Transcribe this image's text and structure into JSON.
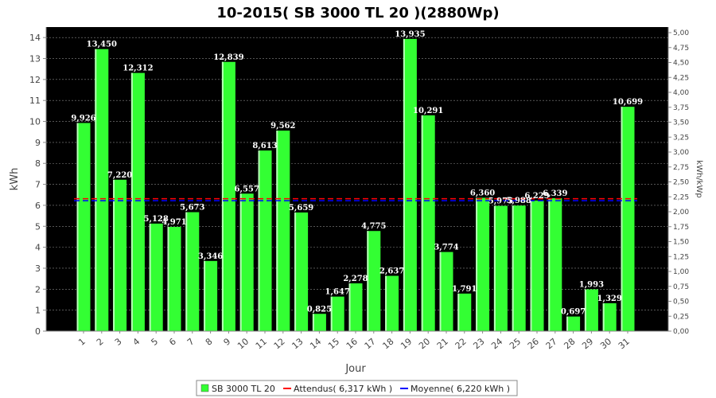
{
  "chart_data": {
    "type": "bar",
    "title": "10-2015( SB 3000 TL 20 )(2880Wp)",
    "xlabel": "Jour",
    "ylabel": "kWh",
    "y2label": "kWh/kWp",
    "ylim": [
      0,
      14.5
    ],
    "y2lim": [
      0,
      5.0
    ],
    "yticks": [
      "0",
      "1",
      "2",
      "3",
      "4",
      "5",
      "6",
      "7",
      "8",
      "9",
      "10",
      "11",
      "12",
      "13",
      "14"
    ],
    "y2ticks": [
      "0,00",
      "0,25",
      "0,50",
      "0,75",
      "1,00",
      "1,25",
      "1,50",
      "1,75",
      "2,00",
      "2,25",
      "2,50",
      "2,75",
      "3,00",
      "3,25",
      "3,50",
      "3,75",
      "4,00",
      "4,25",
      "4,50",
      "4,75",
      "5,00"
    ],
    "categories": [
      "1",
      "2",
      "3",
      "4",
      "5",
      "6",
      "7",
      "8",
      "9",
      "10",
      "11",
      "12",
      "13",
      "14",
      "15",
      "16",
      "17",
      "18",
      "19",
      "20",
      "21",
      "22",
      "23",
      "24",
      "25",
      "26",
      "27",
      "28",
      "29",
      "30",
      "31"
    ],
    "grid": true,
    "legend_position": "bottom",
    "series": [
      {
        "name": "SB 3000 TL 20",
        "color": "#33ff33",
        "values": [
          9.926,
          13.45,
          7.22,
          12.312,
          5.128,
          4.971,
          5.673,
          3.346,
          12.839,
          6.557,
          8.613,
          9.562,
          5.659,
          0.825,
          1.647,
          2.278,
          4.775,
          2.637,
          13.935,
          10.291,
          3.774,
          1.791,
          6.36,
          5.975,
          5.988,
          6.229,
          6.339,
          0.697,
          1.993,
          1.329,
          10.699
        ],
        "labels": [
          "9,926",
          "13,450",
          "7,220",
          "12,312",
          "5,128",
          "4,971",
          "5,673",
          "3,346",
          "12,839",
          "6,557",
          "8,613",
          "9,562",
          "5,659",
          "0,825",
          "1,647",
          "2,278",
          "4,775",
          "2,637",
          "13,935",
          "10,291",
          "3,774",
          "1,791",
          "6,360",
          "5,975",
          "5,988",
          "6,229",
          "6,339",
          "0,697",
          "1,993",
          "1,329",
          "10,699"
        ]
      }
    ],
    "reference_lines": [
      {
        "name": "Attendus( 6,317 kWh )",
        "value": 6.317,
        "color": "#ff0000"
      },
      {
        "name": "Moyenne( 6,220 kWh )",
        "value": 6.22,
        "color": "#0000ff"
      }
    ],
    "colors": {
      "plot_background": "#000000",
      "grid": "#888888",
      "bar": "#33ff33",
      "data_label": "#ffffff"
    }
  }
}
